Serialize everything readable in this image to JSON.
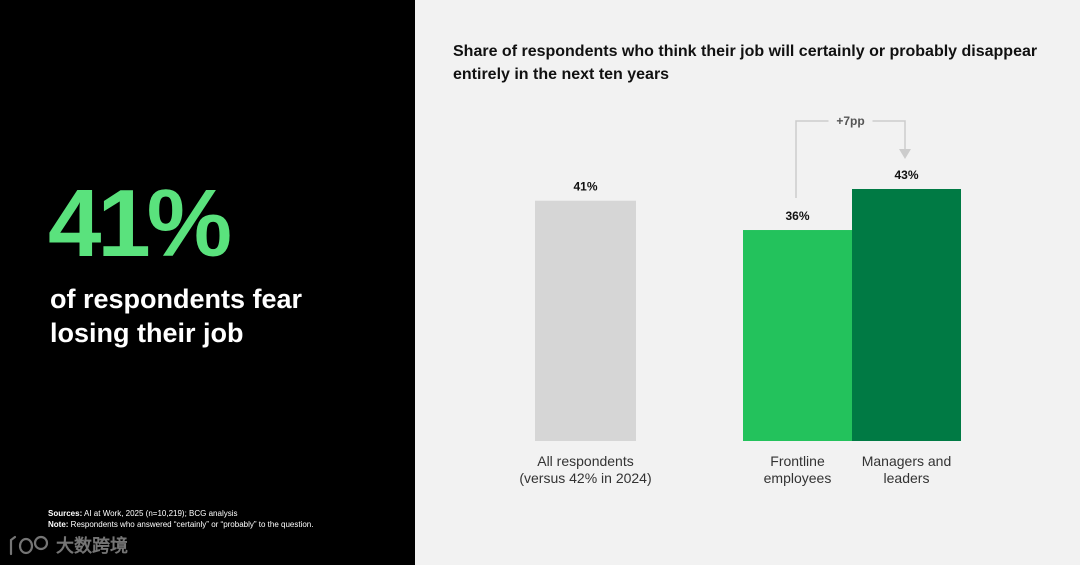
{
  "headline": {
    "stat": "41%",
    "caption": "of respondents fear losing their job"
  },
  "footnotes": {
    "sources_label": "Sources:",
    "sources_text": " AI at Work, 2025 (n=10,219); BCG analysis",
    "note_label": "Note:",
    "note_text": " Respondents who answered “certainly” or “probably” to the question."
  },
  "watermark": {
    "text": "大数跨境"
  },
  "chart_data": {
    "type": "bar",
    "title": "Share of respondents who think their job will certainly or probably disappear entirely in the next ten years",
    "unit": "%",
    "categories": [
      {
        "lines": [
          "All respondents",
          "(versus 42% in 2024)"
        ]
      },
      {
        "lines": [
          "Frontline",
          "employees"
        ]
      },
      {
        "lines": [
          "Managers and",
          "leaders"
        ]
      }
    ],
    "values": [
      41,
      36,
      43
    ],
    "value_labels": [
      "41%",
      "36%",
      "43%"
    ],
    "colors": [
      "#d6d6d6",
      "#23c25c",
      "#007a44"
    ],
    "comparison": {
      "from": 1,
      "to": 2,
      "label": "+7pp",
      "color": "#cccccc"
    }
  },
  "colors": {
    "left_bg": "#000000",
    "right_bg": "#f2f2f2",
    "accent_green": "#5ae27d"
  }
}
